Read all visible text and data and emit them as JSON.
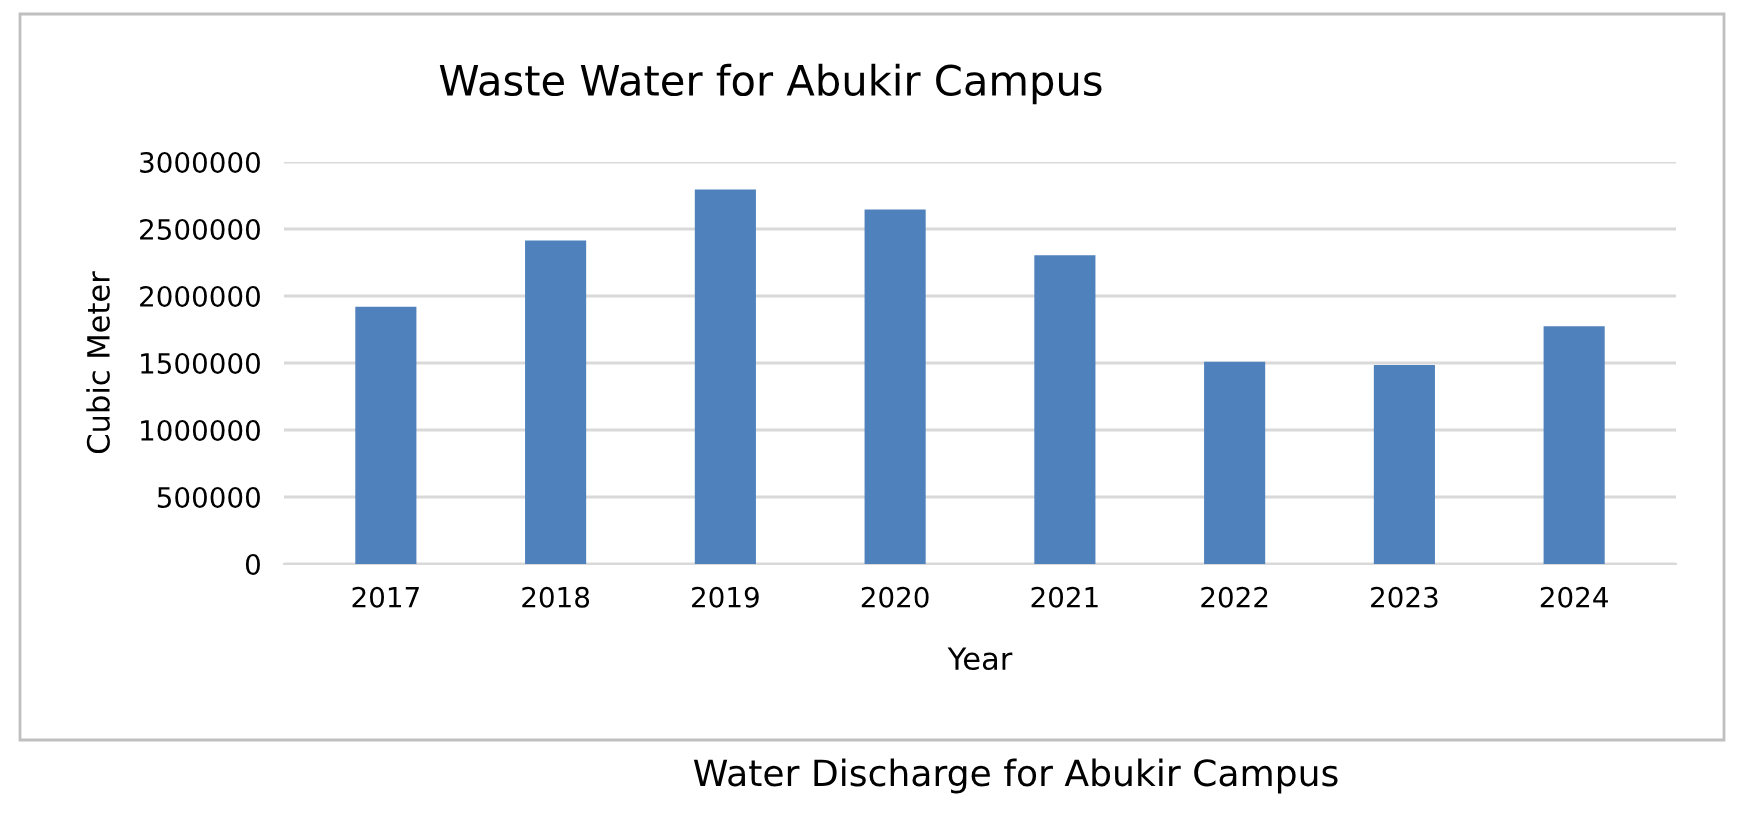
{
  "chart_data": {
    "type": "bar",
    "title": "Waste Water for Abukir Campus",
    "xlabel": "Year",
    "ylabel": "Cubic Meter",
    "categories": [
      "2017",
      "2018",
      "2019",
      "2020",
      "2021",
      "2022",
      "2023",
      "2024"
    ],
    "values": [
      1920000,
      2415000,
      2795000,
      2645000,
      2305000,
      1510000,
      1485000,
      1775000
    ],
    "color": "#4f81bd",
    "ylim": [
      0,
      3000000
    ],
    "yticks": [
      0,
      500000,
      1000000,
      1500000,
      2000000,
      2500000,
      3000000
    ],
    "grid": "y",
    "annotations": [
      "Water Discharge for Abukir Campus"
    ]
  }
}
